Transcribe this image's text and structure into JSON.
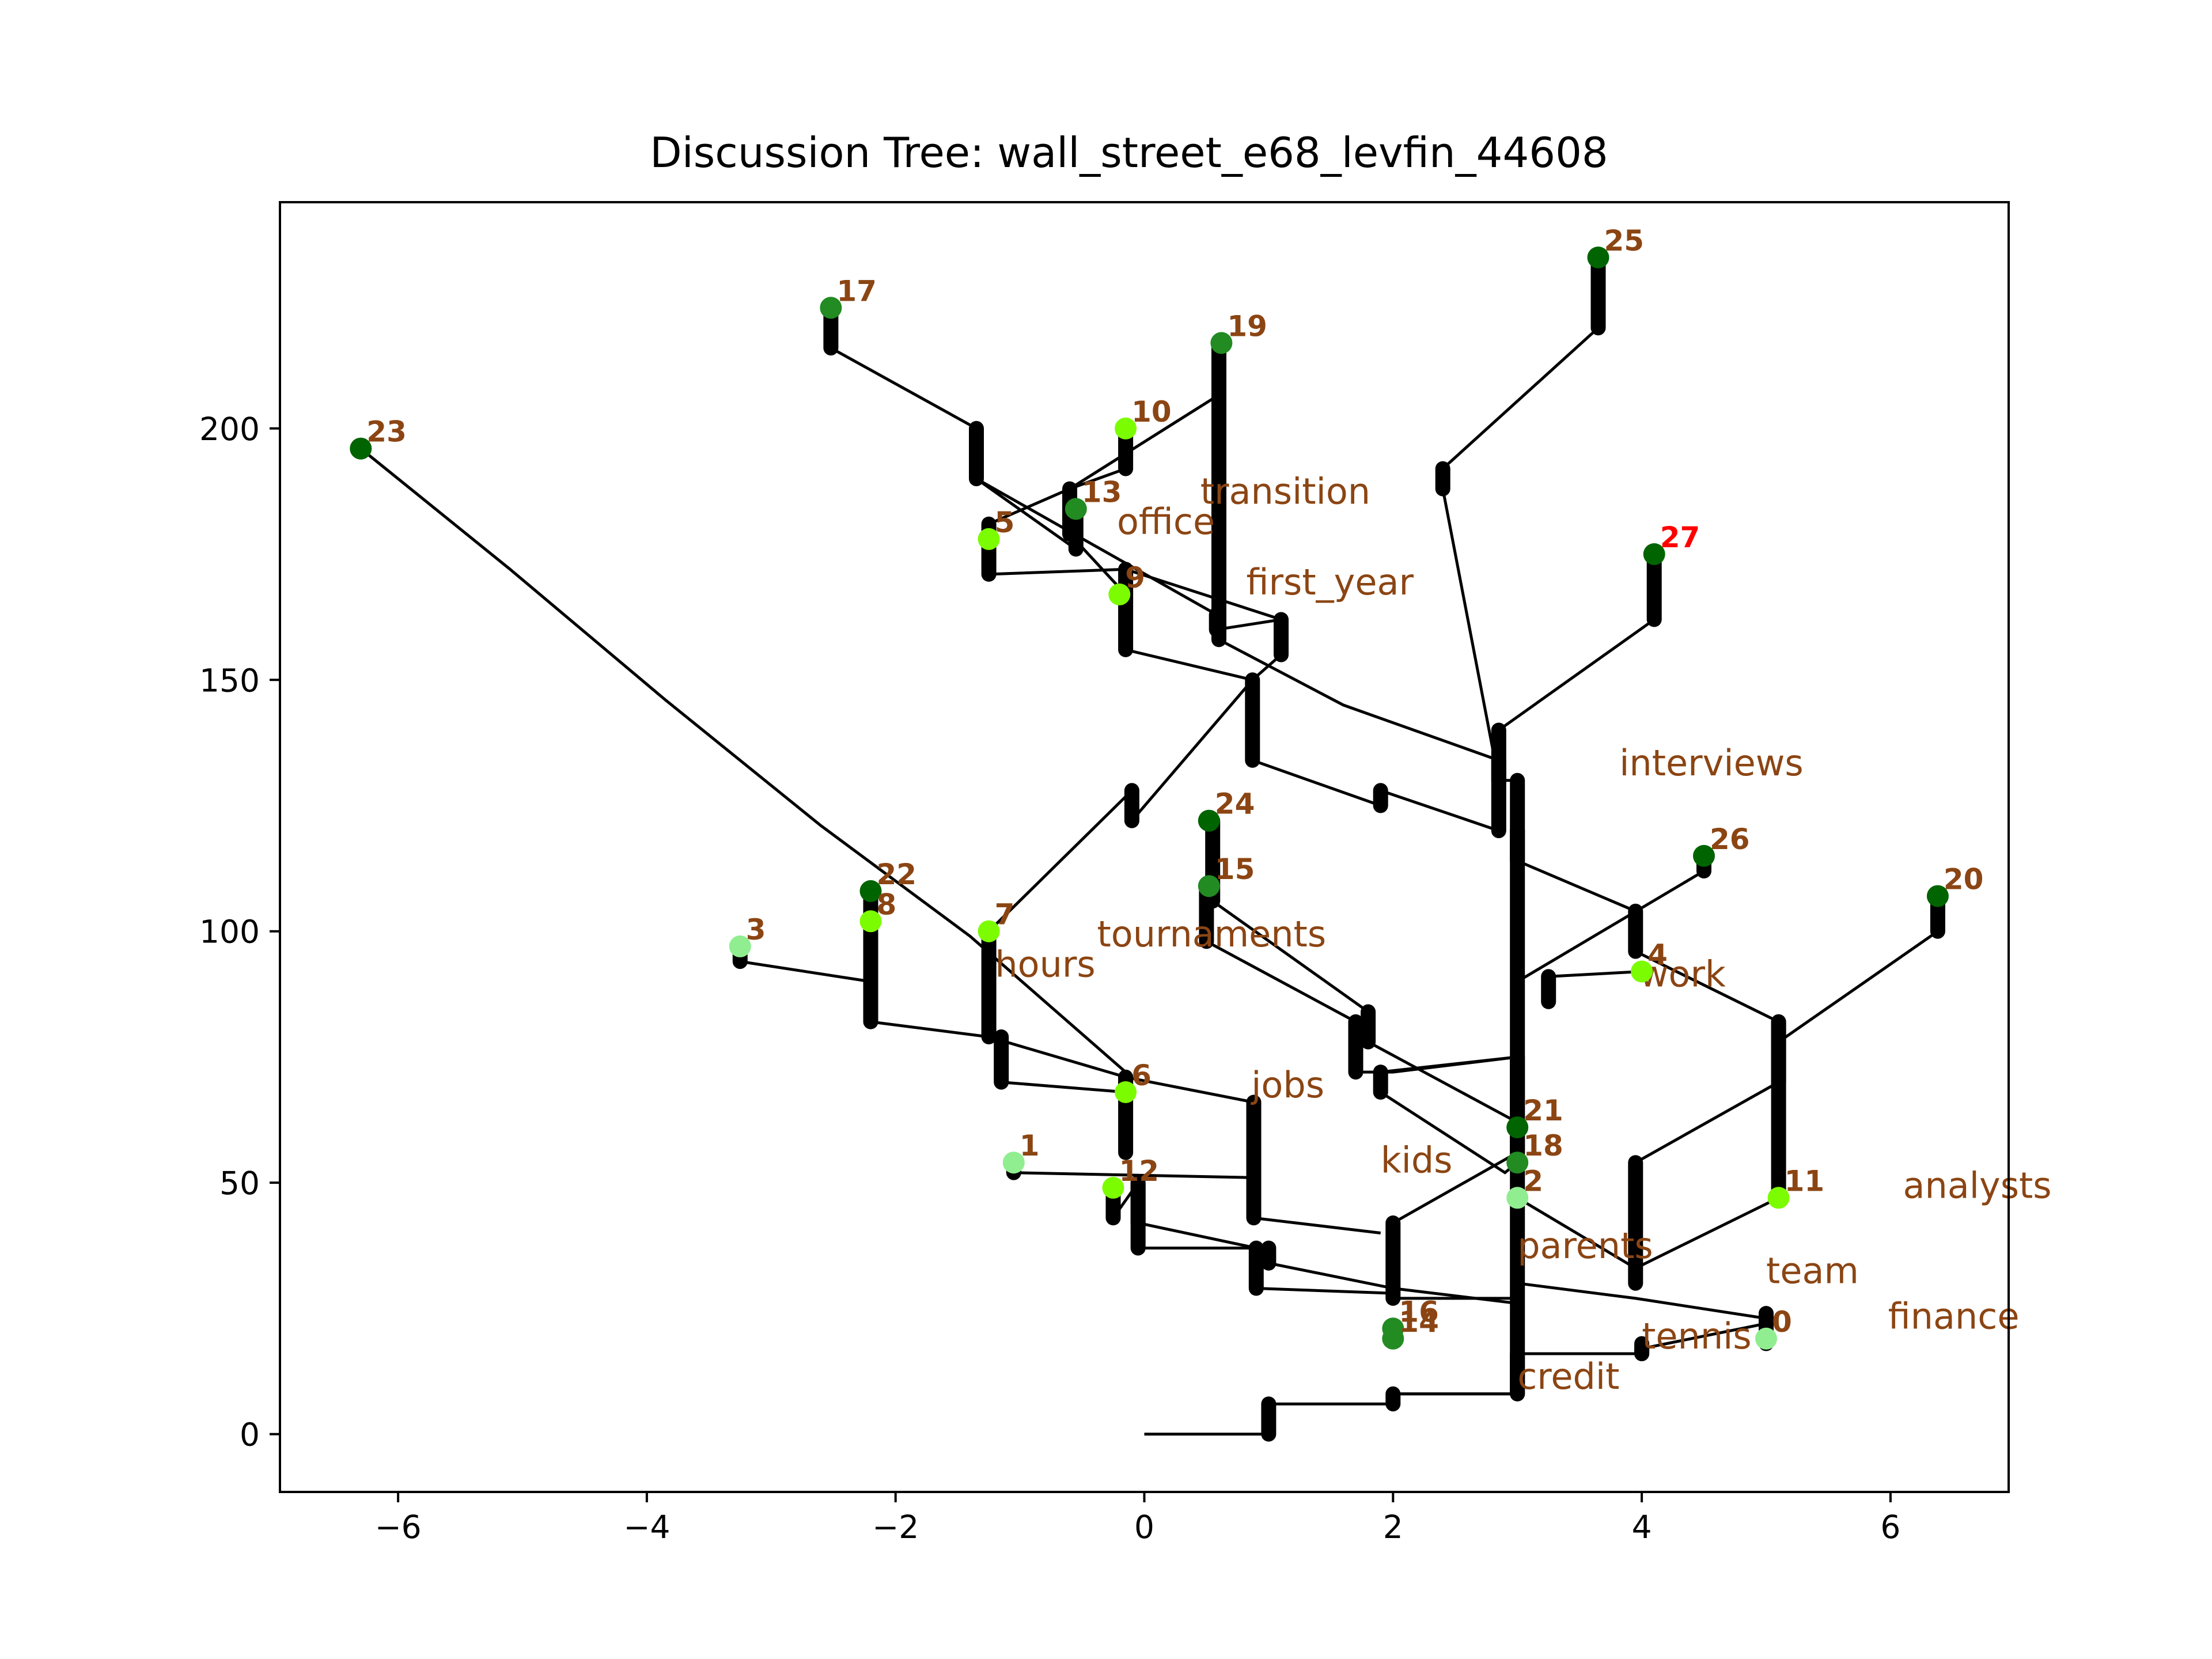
{
  "chart_data": {
    "type": "scatter",
    "title": "Discussion Tree: wall_street_e68_levfin_44608",
    "xlabel": "",
    "ylabel": "",
    "xlim": [
      -6.95,
      6.95
    ],
    "ylim": [
      -11.5,
      245
    ],
    "x_ticks": [
      -6,
      -4,
      -2,
      0,
      2,
      4,
      6
    ],
    "x_tick_labels": [
      "−6",
      "−4",
      "−2",
      "0",
      "2",
      "4",
      "6"
    ],
    "y_ticks": [
      0,
      50,
      100,
      150,
      200
    ],
    "y_tick_labels": [
      "0",
      "50",
      "100",
      "150",
      "200"
    ],
    "grid": false,
    "legend": "none",
    "nodes": [
      {
        "id": "0",
        "x": 5.0,
        "y": 19,
        "color": "#90ee90"
      },
      {
        "id": "1",
        "x": -1.05,
        "y": 54,
        "color": "#90ee90"
      },
      {
        "id": "2",
        "x": 3.0,
        "y": 47,
        "color": "#90ee90"
      },
      {
        "id": "3",
        "x": -3.25,
        "y": 97,
        "color": "#90ee90"
      },
      {
        "id": "4",
        "x": 4.0,
        "y": 92,
        "color": "#7cfc00"
      },
      {
        "id": "5",
        "x": -1.25,
        "y": 178,
        "color": "#7cfc00"
      },
      {
        "id": "6",
        "x": -0.15,
        "y": 68,
        "color": "#7cfc00"
      },
      {
        "id": "7",
        "x": -1.25,
        "y": 100,
        "color": "#7cfc00"
      },
      {
        "id": "8",
        "x": -2.2,
        "y": 102,
        "color": "#7cfc00"
      },
      {
        "id": "9",
        "x": -0.2,
        "y": 167,
        "color": "#7cfc00"
      },
      {
        "id": "10",
        "x": -0.15,
        "y": 200,
        "color": "#7cfc00"
      },
      {
        "id": "11",
        "x": 5.1,
        "y": 47,
        "color": "#7cfc00"
      },
      {
        "id": "12",
        "x": -0.25,
        "y": 49,
        "color": "#7cfc00"
      },
      {
        "id": "13",
        "x": -0.55,
        "y": 184,
        "color": "#228b22"
      },
      {
        "id": "14",
        "x": 2.0,
        "y": 19,
        "color": "#228b22"
      },
      {
        "id": "15",
        "x": 0.52,
        "y": 109,
        "color": "#228b22"
      },
      {
        "id": "16",
        "x": 2.0,
        "y": 21,
        "color": "#228b22"
      },
      {
        "id": "17",
        "x": -2.52,
        "y": 224,
        "color": "#228b22"
      },
      {
        "id": "18",
        "x": 3.0,
        "y": 54,
        "color": "#228b22"
      },
      {
        "id": "19",
        "x": 0.62,
        "y": 217,
        "color": "#228b22"
      },
      {
        "id": "20",
        "x": 6.38,
        "y": 107,
        "color": "#006400"
      },
      {
        "id": "21",
        "x": 3.0,
        "y": 61,
        "color": "#006400"
      },
      {
        "id": "22",
        "x": -2.2,
        "y": 108,
        "color": "#006400"
      },
      {
        "id": "23",
        "x": -6.3,
        "y": 196,
        "color": "#006400"
      },
      {
        "id": "24",
        "x": 0.52,
        "y": 122,
        "color": "#006400"
      },
      {
        "id": "25",
        "x": 3.65,
        "y": 234,
        "color": "#006400"
      },
      {
        "id": "26",
        "x": 4.5,
        "y": 115,
        "color": "#006400"
      },
      {
        "id": "27",
        "x": 4.1,
        "y": 175,
        "color": "#006400",
        "label_color": "#ff0000"
      }
    ],
    "edges": [
      [
        [
          0,
          0
        ],
        [
          1,
          0
        ],
        [
          1,
          6
        ],
        [
          2,
          6
        ],
        [
          2,
          8
        ],
        [
          3,
          8
        ],
        [
          3,
          16
        ],
        [
          4,
          16
        ],
        [
          4,
          17
        ]
      ],
      [
        [
          4,
          17
        ],
        [
          5,
          22
        ],
        [
          5,
          24
        ],
        [
          5,
          19
        ],
        [
          5,
          18
        ]
      ],
      [
        [
          3,
          8
        ],
        [
          3,
          60
        ],
        [
          3,
          75
        ],
        [
          2,
          72
        ],
        [
          1.7,
          72
        ],
        [
          1.7,
          82
        ],
        [
          0.5,
          98
        ],
        [
          0.5,
          109
        ]
      ],
      [
        [
          3,
          60
        ],
        [
          3,
          120
        ],
        [
          3,
          130
        ],
        [
          2.85,
          130
        ],
        [
          2.85,
          140
        ],
        [
          4.1,
          162
        ],
        [
          4.1,
          175
        ]
      ],
      [
        [
          2.85,
          130
        ],
        [
          2.4,
          188
        ],
        [
          2.4,
          192
        ],
        [
          3.65,
          220
        ],
        [
          3.65,
          234
        ]
      ],
      [
        [
          2.85,
          120
        ],
        [
          2.85,
          134
        ],
        [
          1.6,
          145
        ],
        [
          0.6,
          158
        ],
        [
          0.6,
          217
        ]
      ],
      [
        [
          3,
          62
        ],
        [
          1.8,
          78
        ],
        [
          1.8,
          84
        ],
        [
          0.55,
          106
        ],
        [
          0.55,
          122
        ]
      ],
      [
        [
          3.25,
          86
        ],
        [
          3.25,
          91
        ],
        [
          4,
          92
        ]
      ],
      [
        [
          3,
          114
        ],
        [
          3.95,
          104
        ],
        [
          3.95,
          96
        ],
        [
          5.1,
          82
        ],
        [
          5.1,
          78
        ],
        [
          6.38,
          100
        ],
        [
          6.38,
          107
        ]
      ],
      [
        [
          5.1,
          82
        ],
        [
          5.1,
          47
        ]
      ],
      [
        [
          3,
          90
        ],
        [
          4.5,
          112
        ],
        [
          4.5,
          115
        ]
      ],
      [
        [
          2.85,
          120
        ],
        [
          1.9,
          128
        ],
        [
          1.9,
          125
        ],
        [
          0.87,
          134
        ],
        [
          0.87,
          150
        ],
        [
          -0.1,
          122
        ],
        [
          -0.1,
          128
        ],
        [
          -1.25,
          100
        ]
      ],
      [
        [
          0.87,
          150
        ],
        [
          -0.15,
          156
        ],
        [
          -0.15,
          167
        ]
      ],
      [
        [
          0.87,
          150
        ],
        [
          1.1,
          155
        ],
        [
          1.1,
          162
        ],
        [
          -0.15,
          172
        ],
        [
          -0.15,
          167
        ]
      ],
      [
        [
          1.1,
          162
        ],
        [
          0.58,
          160
        ],
        [
          0.58,
          163
        ],
        [
          -1.35,
          190
        ],
        [
          -1.35,
          200
        ],
        [
          -2.52,
          216
        ],
        [
          -2.52,
          224
        ]
      ],
      [
        [
          -0.15,
          172
        ],
        [
          -1.25,
          171
        ],
        [
          -1.25,
          178
        ]
      ],
      [
        [
          -1.35,
          190
        ],
        [
          -0.55,
          176
        ],
        [
          -0.55,
          184
        ]
      ],
      [
        [
          -0.15,
          167
        ],
        [
          -0.6,
          179
        ],
        [
          -0.6,
          188
        ],
        [
          -0.15,
          192
        ],
        [
          -0.15,
          200
        ]
      ],
      [
        [
          -0.6,
          188
        ],
        [
          -1.25,
          181
        ],
        [
          -1.25,
          178
        ]
      ],
      [
        [
          0.62,
          207
        ],
        [
          -0.6,
          188
        ]
      ],
      [
        [
          3,
          114
        ],
        [
          3,
          120
        ]
      ],
      [
        [
          3,
          8
        ],
        [
          2,
          8
        ]
      ],
      [
        [
          3,
          27
        ],
        [
          2,
          27
        ],
        [
          2,
          42
        ],
        [
          3,
          56
        ],
        [
          3,
          61
        ]
      ],
      [
        [
          3,
          16
        ],
        [
          4,
          16
        ]
      ],
      [
        [
          3,
          26
        ],
        [
          2,
          29
        ],
        [
          1,
          34
        ],
        [
          1,
          37
        ],
        [
          -0.05,
          37
        ],
        [
          -0.05,
          50
        ],
        [
          -0.25,
          43
        ],
        [
          -0.25,
          49
        ]
      ],
      [
        [
          2,
          28
        ],
        [
          0.9,
          29
        ],
        [
          0.9,
          37
        ],
        [
          -0.05,
          42
        ],
        [
          -0.05,
          50
        ]
      ],
      [
        [
          1.9,
          40
        ],
        [
          0.88,
          43
        ],
        [
          0.88,
          51
        ],
        [
          -1.05,
          52
        ],
        [
          -1.05,
          54
        ]
      ],
      [
        [
          0.88,
          66
        ],
        [
          0.88,
          51
        ]
      ],
      [
        [
          0.88,
          66
        ],
        [
          -0.15,
          71
        ],
        [
          -0.15,
          68
        ]
      ],
      [
        [
          -0.15,
          56
        ],
        [
          -0.15,
          71
        ],
        [
          -1.25,
          79
        ],
        [
          -1.25,
          100
        ]
      ],
      [
        [
          -1.25,
          79
        ],
        [
          -2.2,
          82
        ],
        [
          -2.2,
          108
        ]
      ],
      [
        [
          -1.15,
          70
        ],
        [
          -1.15,
          79
        ]
      ],
      [
        [
          -1.15,
          70
        ],
        [
          -0.15,
          68
        ]
      ],
      [
        [
          1.9,
          68
        ],
        [
          1.9,
          72
        ],
        [
          3,
          75
        ]
      ],
      [
        [
          1.9,
          68
        ],
        [
          2.9,
          52
        ],
        [
          3,
          54
        ]
      ],
      [
        [
          -0.15,
          72
        ],
        [
          -1.4,
          99
        ],
        [
          -2.6,
          121
        ],
        [
          -3.85,
          146
        ],
        [
          -5.1,
          172
        ],
        [
          -6.3,
          196
        ]
      ],
      [
        [
          -2.2,
          90
        ],
        [
          -3.25,
          94
        ],
        [
          -3.25,
          97
        ]
      ],
      [
        [
          3.95,
          30
        ],
        [
          3.95,
          54
        ],
        [
          5.1,
          70
        ],
        [
          5.1,
          78
        ]
      ],
      [
        [
          5.1,
          47
        ],
        [
          3.95,
          33
        ],
        [
          3,
          47
        ]
      ],
      [
        [
          3,
          16
        ],
        [
          4,
          16
        ],
        [
          4,
          18
        ]
      ],
      [
        [
          3,
          30
        ],
        [
          3.95,
          27
        ],
        [
          5.0,
          23
        ],
        [
          5.0,
          19
        ]
      ]
    ],
    "keywords": [
      {
        "text": "transition",
        "x": 0.45,
        "y": 185
      },
      {
        "text": "office",
        "x": -0.22,
        "y": 179
      },
      {
        "text": "first_year",
        "x": 0.82,
        "y": 167
      },
      {
        "text": "interviews",
        "x": 3.82,
        "y": 131
      },
      {
        "text": "tournaments",
        "x": -0.38,
        "y": 97
      },
      {
        "text": "hours",
        "x": -1.2,
        "y": 91
      },
      {
        "text": "work",
        "x": 3.98,
        "y": 89
      },
      {
        "text": "jobs",
        "x": 0.86,
        "y": 67
      },
      {
        "text": "kids",
        "x": 1.9,
        "y": 52
      },
      {
        "text": "analysts",
        "x": 6.1,
        "y": 47
      },
      {
        "text": "parents",
        "x": 3.0,
        "y": 35
      },
      {
        "text": "team",
        "x": 5.0,
        "y": 30
      },
      {
        "text": "finance",
        "x": 5.98,
        "y": 21
      },
      {
        "text": "tennis",
        "x": 4.0,
        "y": 17
      },
      {
        "text": "credit",
        "x": 3.0,
        "y": 9
      }
    ]
  }
}
